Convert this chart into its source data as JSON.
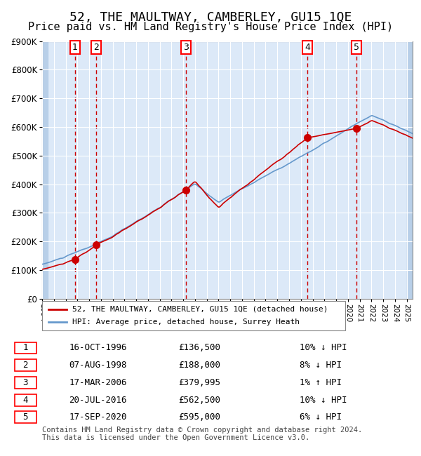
{
  "title": "52, THE MAULTWAY, CAMBERLEY, GU15 1QE",
  "subtitle": "Price paid vs. HM Land Registry's House Price Index (HPI)",
  "title_fontsize": 13,
  "subtitle_fontsize": 11,
  "red_line_label": "52, THE MAULTWAY, CAMBERLEY, GU15 1QE (detached house)",
  "blue_line_label": "HPI: Average price, detached house, Surrey Heath",
  "transactions": [
    {
      "num": 1,
      "date": "16-OCT-1996",
      "price": 136500,
      "year": 1996.79,
      "hpi_diff": "10% ↓ HPI"
    },
    {
      "num": 2,
      "date": "07-AUG-1998",
      "price": 188000,
      "year": 1998.6,
      "hpi_diff": "8% ↓ HPI"
    },
    {
      "num": 3,
      "date": "17-MAR-2006",
      "price": 379995,
      "year": 2006.21,
      "hpi_diff": "1% ↑ HPI"
    },
    {
      "num": 4,
      "date": "20-JUL-2016",
      "price": 562500,
      "year": 2016.55,
      "hpi_diff": "10% ↓ HPI"
    },
    {
      "num": 5,
      "date": "17-SEP-2020",
      "price": 595000,
      "year": 2020.71,
      "hpi_diff": "6% ↓ HPI"
    }
  ],
  "ylim": [
    0,
    900000
  ],
  "xlim_start": 1994.0,
  "xlim_end": 2025.5,
  "background_color": "#dce9f8",
  "plot_bg_color": "#dce9f8",
  "hatch_color": "#b8cfe8",
  "grid_color": "#ffffff",
  "red_line_color": "#cc0000",
  "blue_line_color": "#6699cc",
  "dot_color": "#cc0000",
  "vline_color": "#cc0000",
  "footer": "Contains HM Land Registry data © Crown copyright and database right 2024.\nThis data is licensed under the Open Government Licence v3.0.",
  "hpi_base_year": 1994.0,
  "hpi_base_value": 120000
}
